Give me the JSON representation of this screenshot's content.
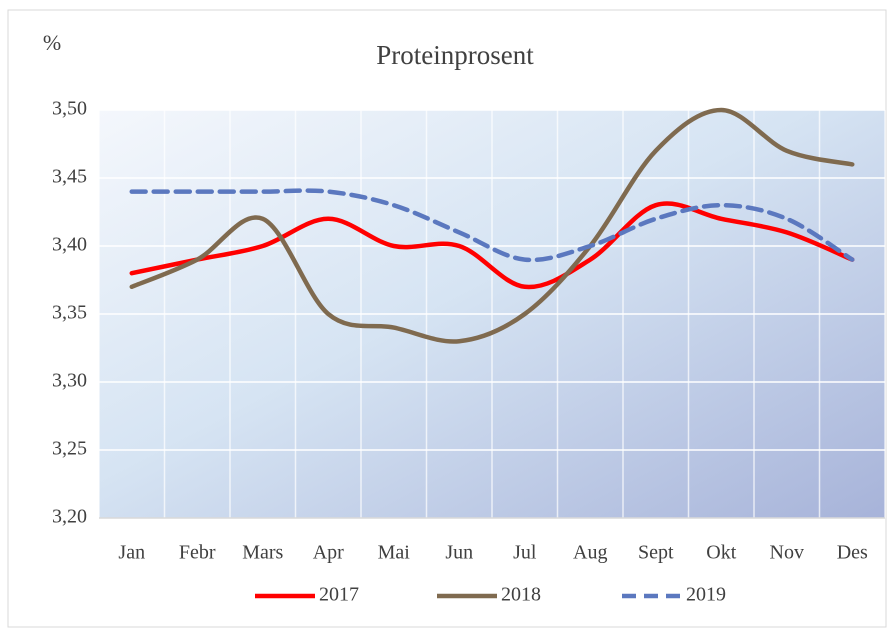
{
  "chart_data": {
    "type": "line",
    "title": "Proteinprosent",
    "y_label": "%",
    "categories": [
      "Jan",
      "Febr",
      "Mars",
      "Apr",
      "Mai",
      "Jun",
      "Jul",
      "Aug",
      "Sept",
      "Okt",
      "Nov",
      "Des"
    ],
    "series": [
      {
        "name": "2017",
        "color": "#ff0000",
        "dashed": false,
        "values": [
          3.38,
          3.39,
          3.4,
          3.42,
          3.4,
          3.4,
          3.37,
          3.39,
          3.43,
          3.42,
          3.41,
          3.39
        ]
      },
      {
        "name": "2018",
        "color": "#7f6a4f",
        "dashed": false,
        "values": [
          3.37,
          3.39,
          3.42,
          3.35,
          3.34,
          3.33,
          3.35,
          3.4,
          3.47,
          3.5,
          3.47,
          3.46
        ]
      },
      {
        "name": "2019",
        "color": "#5b78bf",
        "dashed": true,
        "values": [
          3.44,
          3.44,
          3.44,
          3.44,
          3.43,
          3.41,
          3.39,
          3.4,
          3.42,
          3.43,
          3.42,
          3.39
        ]
      }
    ],
    "ylim": [
      3.2,
      3.5
    ],
    "yticks": [
      {
        "value": 3.2,
        "label": "3,20"
      },
      {
        "value": 3.25,
        "label": "3,25"
      },
      {
        "value": 3.3,
        "label": "3,30"
      },
      {
        "value": 3.35,
        "label": "3,35"
      },
      {
        "value": 3.4,
        "label": "3,40"
      },
      {
        "value": 3.45,
        "label": "3,45"
      },
      {
        "value": 3.5,
        "label": "3,50"
      }
    ],
    "grid": true,
    "legend": "bottom"
  }
}
